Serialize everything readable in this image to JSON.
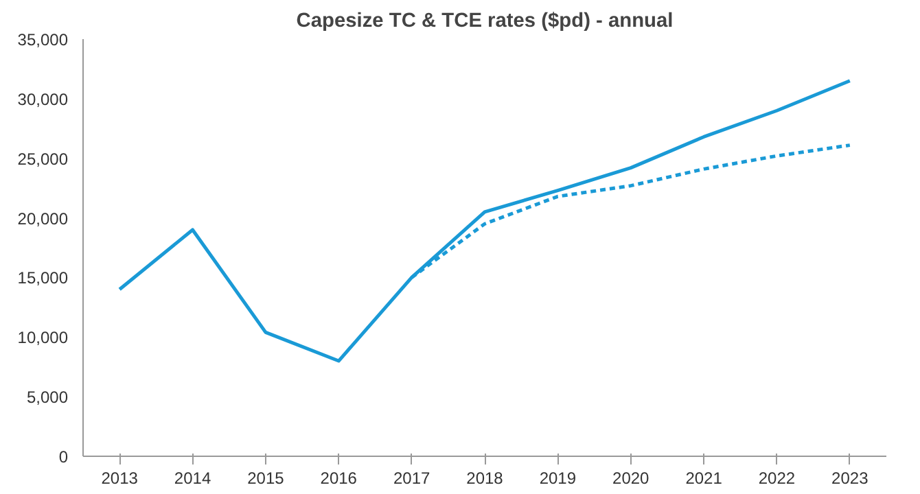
{
  "chart_data": {
    "type": "line",
    "title": "Capesize TC & TCE rates ($pd) - annual",
    "categories": [
      "2013",
      "2014",
      "2015",
      "2016",
      "2017",
      "2018",
      "2019",
      "2020",
      "2021",
      "2022",
      "2023"
    ],
    "series": [
      {
        "color": "#1a9ad6",
        "line_style": "solid",
        "values": [
          14000,
          19000,
          10400,
          8000,
          15000,
          20500,
          22300,
          24200,
          26800,
          29000,
          31500
        ]
      },
      {
        "color": "#1a9ad6",
        "line_style": "dashed",
        "values": [
          null,
          null,
          null,
          null,
          15000,
          19500,
          21800,
          22700,
          24100,
          25200,
          26100
        ]
      }
    ],
    "ylim": [
      0,
      35000
    ],
    "yticks": [
      {
        "value": 0,
        "label": "0"
      },
      {
        "value": 5000,
        "label": "5,000"
      },
      {
        "value": 10000,
        "label": "10,000"
      },
      {
        "value": 15000,
        "label": "15,000"
      },
      {
        "value": 20000,
        "label": "20,000"
      },
      {
        "value": 25000,
        "label": "25,000"
      },
      {
        "value": 30000,
        "label": "30,000"
      },
      {
        "value": 35000,
        "label": "35,000"
      }
    ]
  }
}
